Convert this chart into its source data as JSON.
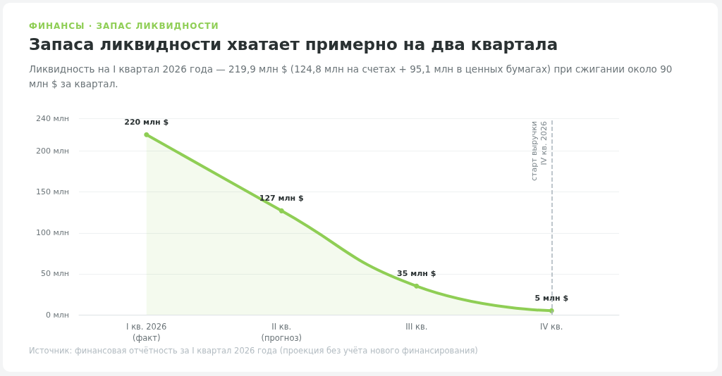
{
  "chart_data": {
    "type": "area",
    "title": "Запаса ликвидности хватает примерно на два квартала",
    "subtitle": "Ликвидность на I квартал 2026 года — 219,9 млн $ (124,8 млн на счетах + 95,1 млн в ценных бумагах) при сжигании около 90 млн $ за квартал.",
    "annotations": [
      "ФИНАНСЫ · ЗАПАС ЛИКВИДНОСТИ",
      "Источник: финансовая отчётность за I квартал 2026 года (проекция без учёта нового финансирования)"
    ],
    "categories": [
      "I кв. 2026\n(факт)",
      "II кв.\n(прогноз)",
      "III кв.",
      "IV кв."
    ],
    "values": [
      220,
      127,
      35,
      5
    ],
    "value_labels": [
      "220 млн $",
      "127 млн $",
      "35 млн $",
      "5 млн $"
    ],
    "color": "#8fce55",
    "ylim": [
      0,
      240
    ],
    "yticks": [
      {
        "value": 0,
        "label": "0 млн"
      },
      {
        "value": 50,
        "label": "50 млн"
      },
      {
        "value": 100,
        "label": "100 млн"
      },
      {
        "value": 150,
        "label": "150 млн"
      },
      {
        "value": 200,
        "label": "200 млн"
      },
      {
        "value": 240,
        "label": "240 млн"
      }
    ],
    "ref_lines": [
      {
        "axis": "x",
        "value": "IV кв.",
        "label": "старт выручки\nIV кв. 2026",
        "color": "#a9b4bc",
        "line_style": "dashed"
      }
    ],
    "grid": "y",
    "marker": "circle",
    "line_style": "solid"
  }
}
